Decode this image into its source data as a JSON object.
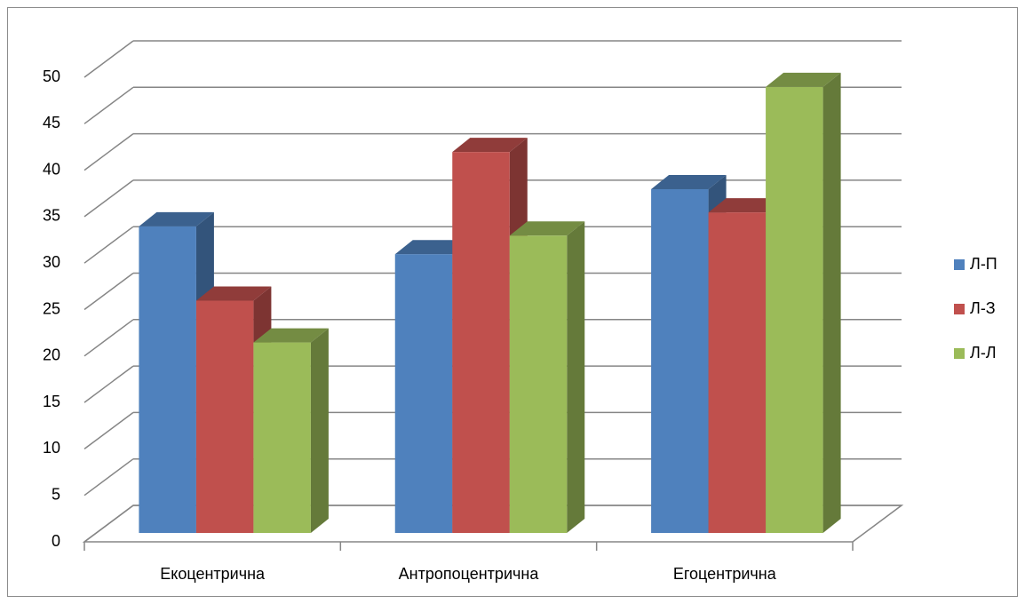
{
  "chart_data": {
    "type": "bar3d",
    "categories": [
      "Екоцентрична",
      "Антропоцентрична",
      "Егоцентрична"
    ],
    "series": [
      {
        "name": "Л-П",
        "color": "#4f81bd",
        "values": [
          33,
          30,
          37
        ]
      },
      {
        "name": "Л-З",
        "color": "#c0504d",
        "values": [
          25,
          41,
          34.5
        ]
      },
      {
        "name": "Л-Л",
        "color": "#9bbb59",
        "values": [
          20.5,
          32,
          48
        ]
      }
    ],
    "ylim": [
      0,
      50
    ],
    "yticks": [
      0,
      5,
      10,
      15,
      20,
      25,
      30,
      35,
      40,
      45,
      50
    ],
    "grid": true,
    "legend": "right"
  }
}
